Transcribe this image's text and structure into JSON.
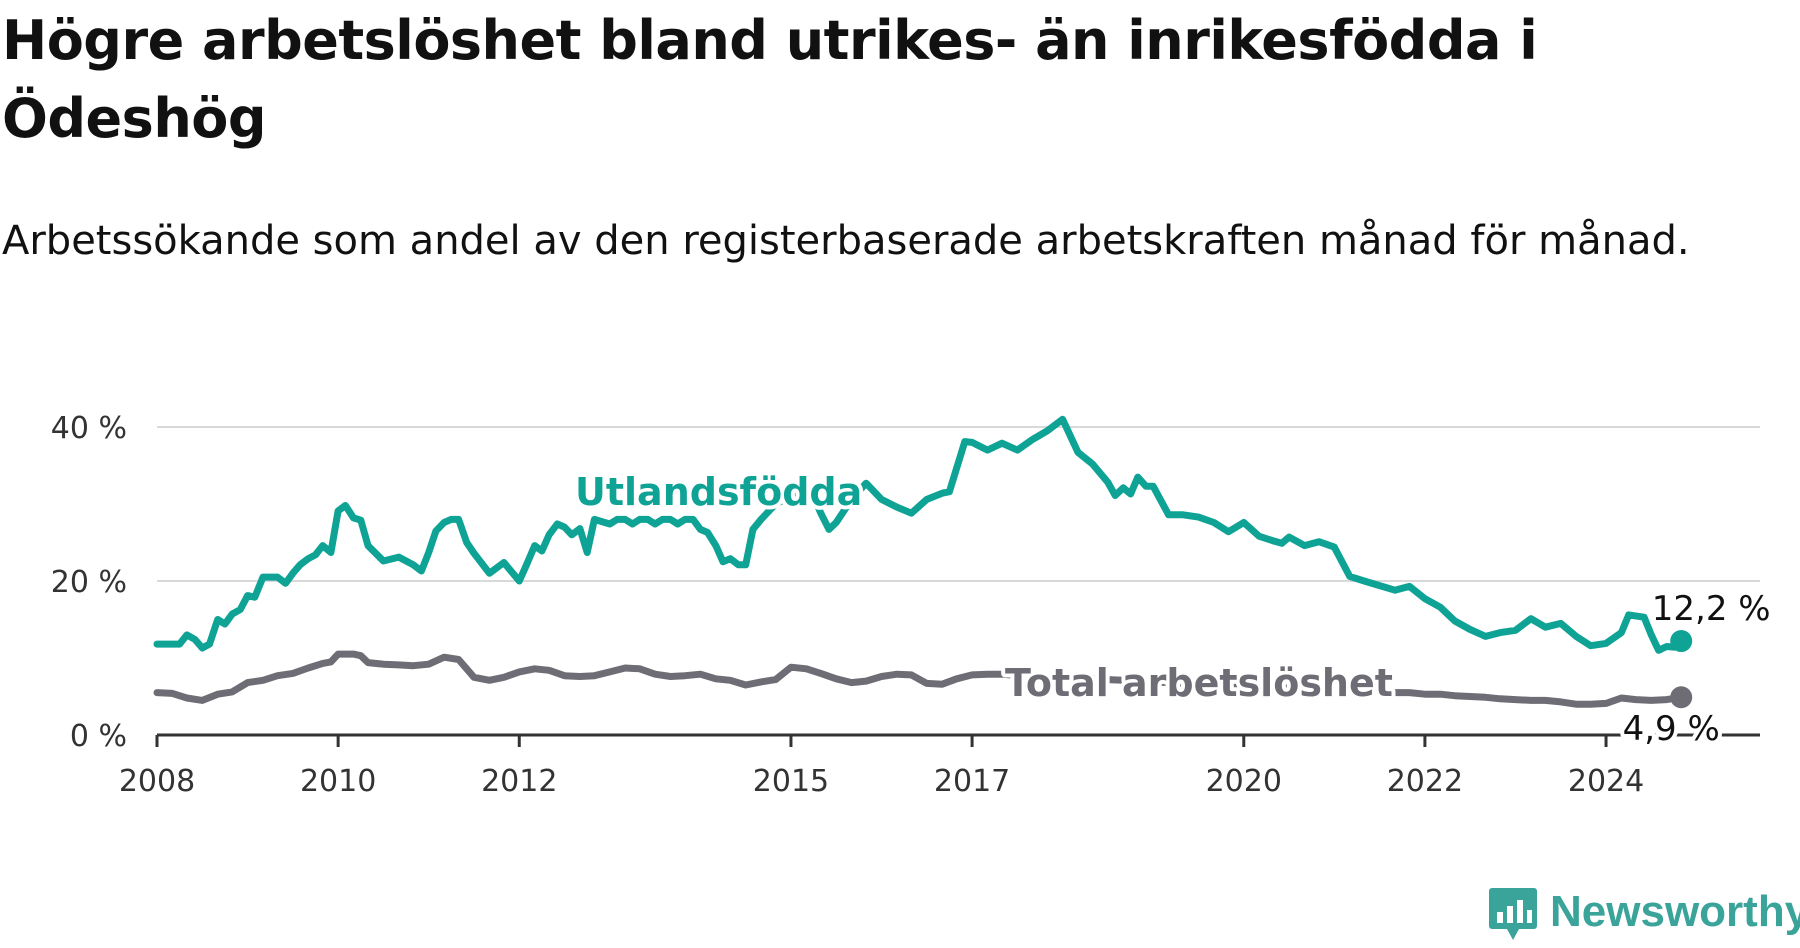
{
  "title": "Högre arbetslöshet bland utrikes- än inrikesfödda i Ödeshög",
  "subtitle": "Arbetssökande som andel av den registerbaserade arbetskraften månad för månad.",
  "brand": {
    "name": "Newsworthy",
    "icon": "newsworthy-bar-chart-icon",
    "color": "#3aa39a"
  },
  "colors": {
    "foreign_born": "#0fa396",
    "total": "#6e6d75",
    "grid": "#d9d9d9",
    "axis": "#333333",
    "text": "#111111"
  },
  "chart_data": {
    "type": "line",
    "title": "Högre arbetslöshet bland utrikes- än inrikesfödda i Ödeshög",
    "subtitle": "Arbetssökande som andel av den registerbaserade arbetskraften månad för månad.",
    "xlabel": "",
    "ylabel": "",
    "xlim": [
      2008.0,
      2025.7
    ],
    "ylim": [
      0,
      40
    ],
    "y_ticks": [
      0,
      20,
      40
    ],
    "y_tick_labels": [
      "0 %",
      "20 %",
      "40 %"
    ],
    "x_ticks": [
      2008,
      2010,
      2012,
      2015,
      2017,
      2020,
      2022,
      2024
    ],
    "x_tick_labels": [
      "2008",
      "2010",
      "2012",
      "2015",
      "2017",
      "2020",
      "2022",
      "2024"
    ],
    "grid": true,
    "legend": "inline labels",
    "series": [
      {
        "name": "Utlandsfödda",
        "color": "#0fa396",
        "end_label": "12,2 %",
        "x": [
          2008.0,
          2008.17,
          2008.25,
          2008.33,
          2008.42,
          2008.5,
          2008.58,
          2008.67,
          2008.75,
          2008.83,
          2008.92,
          2009.0,
          2009.08,
          2009.17,
          2009.25,
          2009.33,
          2009.42,
          2009.5,
          2009.58,
          2009.67,
          2009.75,
          2009.83,
          2009.92,
          2010.0,
          2010.08,
          2010.17,
          2010.25,
          2010.33,
          2010.5,
          2010.67,
          2010.83,
          2010.92,
          2011.0,
          2011.08,
          2011.17,
          2011.25,
          2011.33,
          2011.42,
          2011.5,
          2011.67,
          2011.83,
          2012.0,
          2012.08,
          2012.17,
          2012.25,
          2012.33,
          2012.42,
          2012.5,
          2012.58,
          2012.67,
          2012.75,
          2012.83,
          2013.0,
          2013.08,
          2013.17,
          2013.25,
          2013.33,
          2013.42,
          2013.5,
          2013.58,
          2013.67,
          2013.75,
          2013.83,
          2013.92,
          2014.0,
          2014.08,
          2014.17,
          2014.25,
          2014.33,
          2014.42,
          2014.5,
          2014.58,
          2014.67,
          2014.75,
          2014.83,
          2014.92,
          2015.0,
          2015.08,
          2015.17,
          2015.25,
          2015.33,
          2015.42,
          2015.5,
          2015.67,
          2015.83,
          2016.0,
          2016.17,
          2016.33,
          2016.5,
          2016.67,
          2016.75,
          2016.92,
          2017.0,
          2017.17,
          2017.33,
          2017.5,
          2017.67,
          2017.83,
          2018.0,
          2018.17,
          2018.33,
          2018.5,
          2018.58,
          2018.67,
          2018.75,
          2018.83,
          2018.92,
          2019.0,
          2019.17,
          2019.33,
          2019.5,
          2019.67,
          2019.83,
          2020.0,
          2020.17,
          2020.33,
          2020.42,
          2020.5,
          2020.67,
          2020.83,
          2021.0,
          2021.17,
          2021.33,
          2021.5,
          2021.67,
          2021.83,
          2022.0,
          2022.17,
          2022.33,
          2022.5,
          2022.67,
          2022.83,
          2023.0,
          2023.17,
          2023.33,
          2023.5,
          2023.67,
          2023.83,
          2024.0,
          2024.17,
          2024.25,
          2024.42,
          2024.5,
          2024.58,
          2024.67,
          2024.75,
          2024.83
        ],
        "y": [
          11.8,
          11.8,
          11.8,
          13.0,
          12.4,
          11.3,
          11.8,
          15.0,
          14.4,
          15.7,
          16.3,
          18.1,
          17.9,
          20.5,
          20.5,
          20.5,
          19.7,
          21.0,
          22.1,
          22.9,
          23.4,
          24.6,
          23.7,
          29.1,
          29.8,
          28.2,
          27.9,
          24.6,
          22.6,
          23.1,
          22.1,
          21.3,
          23.7,
          26.5,
          27.6,
          28.0,
          28.0,
          25.0,
          23.6,
          21.0,
          22.4,
          20.0,
          22.1,
          24.6,
          23.9,
          26.0,
          27.4,
          27.0,
          26.0,
          26.8,
          23.7,
          28.0,
          27.4,
          28.0,
          28.0,
          27.4,
          28.0,
          28.0,
          27.4,
          28.0,
          28.0,
          27.4,
          28.0,
          28.0,
          26.7,
          26.3,
          24.6,
          22.5,
          22.9,
          22.1,
          22.1,
          26.7,
          28.0,
          29.0,
          30.0,
          30.5,
          31.0,
          31.5,
          32.0,
          31.0,
          28.8,
          26.7,
          27.6,
          30.6,
          32.7,
          30.6,
          29.6,
          28.8,
          30.6,
          31.4,
          31.6,
          38.1,
          38.0,
          37.0,
          37.9,
          37.0,
          38.4,
          39.5,
          41.0,
          36.7,
          35.2,
          32.8,
          31.1,
          32.1,
          31.3,
          33.5,
          32.3,
          32.3,
          28.6,
          28.6,
          28.3,
          27.6,
          26.4,
          27.6,
          25.8,
          25.2,
          24.9,
          25.7,
          24.6,
          25.1,
          24.4,
          20.6,
          20.0,
          19.4,
          18.8,
          19.3,
          17.7,
          16.6,
          14.8,
          13.7,
          12.8,
          13.3,
          13.6,
          15.1,
          14.0,
          14.5,
          12.8,
          11.6,
          11.9,
          13.3,
          15.6,
          15.3,
          13.0,
          11.0,
          11.5,
          11.4,
          12.2
        ]
      },
      {
        "name": "Total arbetslöshet",
        "color": "#6e6d75",
        "end_label": "4,9 %",
        "x": [
          2008.0,
          2008.17,
          2008.33,
          2008.5,
          2008.67,
          2008.83,
          2009.0,
          2009.17,
          2009.33,
          2009.5,
          2009.67,
          2009.83,
          2009.92,
          2010.0,
          2010.17,
          2010.25,
          2010.33,
          2010.5,
          2010.67,
          2010.83,
          2011.0,
          2011.17,
          2011.33,
          2011.5,
          2011.67,
          2011.83,
          2012.0,
          2012.17,
          2012.33,
          2012.5,
          2012.67,
          2012.83,
          2013.0,
          2013.17,
          2013.33,
          2013.5,
          2013.67,
          2013.83,
          2014.0,
          2014.17,
          2014.33,
          2014.5,
          2014.67,
          2014.83,
          2015.0,
          2015.17,
          2015.33,
          2015.5,
          2015.67,
          2015.83,
          2016.0,
          2016.17,
          2016.33,
          2016.5,
          2016.67,
          2016.83,
          2017.0,
          2017.17,
          2017.33,
          2017.5,
          2017.67,
          2017.83,
          2018.0,
          2018.17,
          2018.33,
          2018.5,
          2018.67,
          2018.83,
          2019.0,
          2019.17,
          2019.33,
          2019.5,
          2019.67,
          2019.83,
          2020.0,
          2020.17,
          2020.33,
          2020.5,
          2020.67,
          2020.83,
          2021.0,
          2021.17,
          2021.33,
          2021.5,
          2021.67,
          2021.83,
          2022.0,
          2022.17,
          2022.33,
          2022.5,
          2022.67,
          2022.83,
          2023.0,
          2023.17,
          2023.33,
          2023.5,
          2023.67,
          2023.83,
          2024.0,
          2024.17,
          2024.33,
          2024.5,
          2024.67,
          2024.83
        ],
        "y": [
          5.5,
          5.4,
          4.8,
          4.5,
          5.3,
          5.6,
          6.8,
          7.1,
          7.7,
          8.0,
          8.7,
          9.3,
          9.5,
          10.5,
          10.5,
          10.3,
          9.4,
          9.2,
          9.1,
          9.0,
          9.2,
          10.1,
          9.8,
          7.5,
          7.1,
          7.5,
          8.2,
          8.6,
          8.4,
          7.7,
          7.6,
          7.7,
          8.2,
          8.7,
          8.6,
          7.9,
          7.6,
          7.7,
          7.9,
          7.3,
          7.1,
          6.5,
          6.9,
          7.2,
          8.8,
          8.6,
          8.0,
          7.3,
          6.8,
          7.0,
          7.6,
          7.9,
          7.8,
          6.7,
          6.6,
          7.3,
          7.8,
          7.9,
          7.9,
          7.7,
          7.6,
          7.5,
          7.4,
          7.3,
          7.3,
          7.2,
          7.1,
          7.0,
          6.9,
          6.8,
          6.7,
          6.6,
          6.5,
          6.4,
          6.4,
          6.3,
          6.2,
          6.1,
          6.0,
          5.9,
          5.8,
          5.8,
          5.7,
          5.6,
          5.5,
          5.5,
          5.3,
          5.3,
          5.1,
          5.0,
          4.9,
          4.7,
          4.6,
          4.5,
          4.5,
          4.3,
          4.0,
          4.0,
          4.1,
          4.8,
          4.6,
          4.5,
          4.6,
          4.9
        ]
      }
    ]
  }
}
